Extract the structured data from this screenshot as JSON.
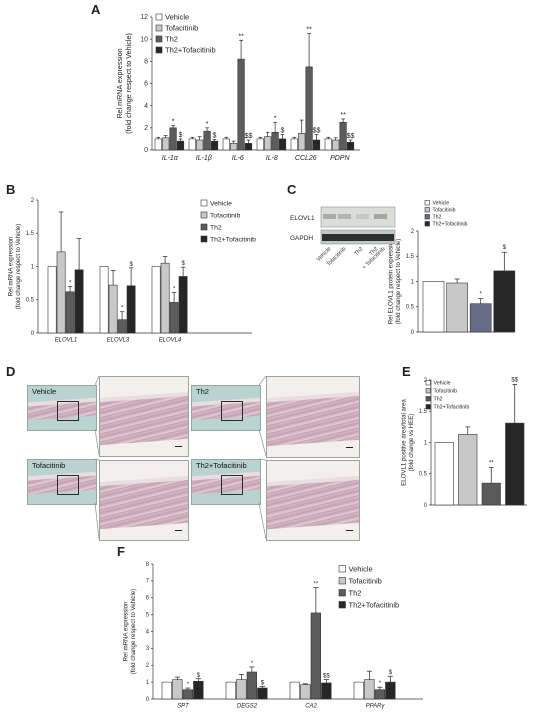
{
  "panels": {
    "A": "A",
    "B": "B",
    "C": "C",
    "D": "D",
    "E": "E",
    "F": "F"
  },
  "colors": {
    "vehicle": "#ffffff",
    "tofacitinib": "#c8c8c8",
    "th2": "#5c5c5c",
    "th2_tofa": "#262626",
    "th2_C": "#676d86",
    "th2_E": "#5a5a5a"
  },
  "legend4": [
    "Vehicle",
    "Tofacitinib",
    "Th2",
    "Th2+Tofacitinib"
  ],
  "chart_data": [
    {
      "id": "A",
      "type": "bar",
      "ylabel": "Rel mRNA expression",
      "ylabel2": "(fold change respect to Vehicle)",
      "ylim": [
        0,
        12
      ],
      "yticks": [
        "0",
        "2",
        "4",
        "6",
        "8",
        "10",
        "12"
      ],
      "categories": [
        "IL-1α",
        "IL-1β",
        "IL-6",
        "IL-8",
        "CCL26",
        "PDPN"
      ],
      "series": [
        {
          "name": "Vehicle",
          "values": [
            1,
            1,
            1,
            1,
            1,
            1
          ],
          "err": [
            0.15,
            0.15,
            0.15,
            0.15,
            0.15,
            0.15
          ]
        },
        {
          "name": "Tofacitinib",
          "values": [
            1.1,
            0.9,
            0.6,
            1.2,
            1.5,
            0.9
          ],
          "err": [
            0.2,
            0.3,
            0.2,
            0.4,
            1.2,
            0.2
          ]
        },
        {
          "name": "Th2",
          "values": [
            2.0,
            1.7,
            8.2,
            1.6,
            7.5,
            2.5
          ],
          "err": [
            0.2,
            0.3,
            1.7,
            0.9,
            3.0,
            0.3
          ]
        },
        {
          "name": "Th2+Tofacitinib",
          "values": [
            0.8,
            0.8,
            0.6,
            1.0,
            0.9,
            0.7
          ],
          "err": [
            0.2,
            0.15,
            0.3,
            0.4,
            0.5,
            0.2
          ]
        }
      ],
      "annotations": [
        {
          "cat": 0,
          "series": 2,
          "text": "*"
        },
        {
          "cat": 0,
          "series": 3,
          "text": "$"
        },
        {
          "cat": 1,
          "series": 2,
          "text": "*"
        },
        {
          "cat": 1,
          "series": 3,
          "text": "$"
        },
        {
          "cat": 2,
          "series": 2,
          "text": "**"
        },
        {
          "cat": 2,
          "series": 3,
          "text": "$$"
        },
        {
          "cat": 3,
          "series": 2,
          "text": "*"
        },
        {
          "cat": 3,
          "series": 3,
          "text": "$"
        },
        {
          "cat": 4,
          "series": 2,
          "text": "**"
        },
        {
          "cat": 4,
          "series": 3,
          "text": "$$"
        },
        {
          "cat": 5,
          "series": 2,
          "text": "**"
        },
        {
          "cat": 5,
          "series": 3,
          "text": "$$"
        }
      ],
      "legend": [
        "Vehicle",
        "Tofacitinib",
        "Th2",
        "Th2+Tofacitinib"
      ]
    },
    {
      "id": "B",
      "type": "bar",
      "ylabel": "Rel mRNA expression",
      "ylabel2": "(fold change respect to Vehicle)",
      "ylim": [
        0,
        2
      ],
      "yticks": [
        "0",
        "0.5",
        "1",
        "1.5",
        "2"
      ],
      "categories": [
        "ELOVL1",
        "ELOVL3",
        "ELOVL4"
      ],
      "series": [
        {
          "name": "Vehicle",
          "values": [
            1,
            1,
            1
          ],
          "err": [
            0,
            0,
            0
          ]
        },
        {
          "name": "Tofacitinib",
          "values": [
            1.22,
            0.72,
            1.05
          ],
          "err": [
            0.6,
            0.22,
            0.1
          ]
        },
        {
          "name": "Th2",
          "values": [
            0.62,
            0.2,
            0.46
          ],
          "err": [
            0.08,
            0.12,
            0.15
          ]
        },
        {
          "name": "Th2+Tofacitinib",
          "values": [
            0.95,
            0.71,
            0.85
          ],
          "err": [
            0.47,
            0.27,
            0.14
          ]
        }
      ],
      "annotations": [
        {
          "cat": 0,
          "series": 2,
          "text": "*"
        },
        {
          "cat": 1,
          "series": 2,
          "text": "*"
        },
        {
          "cat": 1,
          "series": 3,
          "text": "$"
        },
        {
          "cat": 2,
          "series": 2,
          "text": "*"
        },
        {
          "cat": 2,
          "series": 3,
          "text": "$"
        }
      ],
      "legend": [
        "Vehicle",
        "Tofacitinib",
        "Th2",
        "Th2+Tofacitinib"
      ]
    },
    {
      "id": "C",
      "type": "bar",
      "ylabel": "Rel ELOVL1 protein expression",
      "ylabel2": "(fold change respect to Vehicle)",
      "ylim": [
        0,
        2
      ],
      "yticks": [
        "0",
        "0.5",
        "1",
        "1.5",
        "2"
      ],
      "categories": [
        "Vehicle",
        "Tofacitinib",
        "Th2",
        "Th2+Tofacitinib"
      ],
      "values": [
        1.0,
        0.97,
        0.56,
        1.21
      ],
      "err": [
        0,
        0.08,
        0.1,
        0.37
      ],
      "annotations": [
        {
          "index": 2,
          "text": "*"
        },
        {
          "index": 3,
          "text": "$"
        }
      ],
      "legend": [
        "Vehicle",
        "Tofacitinib",
        "Th2",
        "Th2+Tofacitinib"
      ],
      "blot": {
        "rows": [
          "ELOVL1",
          "GAPDH"
        ],
        "lanes": [
          "Vehicle",
          "Tofacitinib",
          "Th2",
          "Th2",
          "+ Tofacitinib"
        ]
      }
    },
    {
      "id": "E",
      "type": "bar",
      "ylabel": "ELOVL1 positive area/total area",
      "ylabel2": "(fold change vs HEE)",
      "ylim": [
        0,
        2
      ],
      "yticks": [
        "0",
        "0.5",
        "1",
        "1.5",
        "2"
      ],
      "categories": [
        "Vehicle",
        "Tofacitinib",
        "Th2",
        "Th2+Tofacitinib"
      ],
      "values": [
        1.0,
        1.13,
        0.35,
        1.31
      ],
      "err": [
        0,
        0.12,
        0.25,
        0.62
      ],
      "annotations": [
        {
          "index": 2,
          "text": "**"
        },
        {
          "index": 3,
          "text": "$$"
        }
      ],
      "legend": [
        "Vehicle",
        "Tofacitinib",
        "Th2",
        "Th2+Tofacitinib"
      ]
    },
    {
      "id": "F",
      "type": "bar",
      "ylabel": "Rel mRNA expression",
      "ylabel2": "(fold change respect to Vehicle)",
      "ylim": [
        0,
        8
      ],
      "yticks": [
        "0",
        "1",
        "2",
        "3",
        "4",
        "5",
        "6",
        "7",
        "8"
      ],
      "categories": [
        "SPT",
        "DEGS2",
        "CA2",
        "PPARγ"
      ],
      "series": [
        {
          "name": "Vehicle",
          "values": [
            1,
            1,
            1,
            1
          ],
          "err": [
            0,
            0,
            0,
            0
          ]
        },
        {
          "name": "Tofacitinib",
          "values": [
            1.15,
            1.15,
            0.85,
            1.15
          ],
          "err": [
            0.15,
            0.3,
            0.05,
            0.5
          ]
        },
        {
          "name": "Th2",
          "values": [
            0.55,
            1.6,
            5.1,
            0.55
          ],
          "err": [
            0.1,
            0.3,
            1.5,
            0.15
          ]
        },
        {
          "name": "Th2+Tofacitinib",
          "values": [
            1.05,
            0.65,
            0.95,
            1.0
          ],
          "err": [
            0.15,
            0.1,
            0.2,
            0.35
          ]
        }
      ],
      "annotations": [
        {
          "cat": 0,
          "series": 2,
          "text": "*"
        },
        {
          "cat": 0,
          "series": 3,
          "text": "$"
        },
        {
          "cat": 1,
          "series": 2,
          "text": "*"
        },
        {
          "cat": 1,
          "series": 3,
          "text": "$"
        },
        {
          "cat": 2,
          "series": 2,
          "text": "**"
        },
        {
          "cat": 2,
          "series": 3,
          "text": "$$"
        },
        {
          "cat": 3,
          "series": 2,
          "text": "*"
        },
        {
          "cat": 3,
          "series": 3,
          "text": "$"
        }
      ],
      "legend": [
        "Vehicle",
        "Tofacitinib",
        "Th2",
        "Th2+Tofacitinib"
      ]
    }
  ],
  "histology": {
    "labels": [
      "Vehicle",
      "Th2",
      "Tofacitinib",
      "Th2+Tofacitinib"
    ]
  }
}
